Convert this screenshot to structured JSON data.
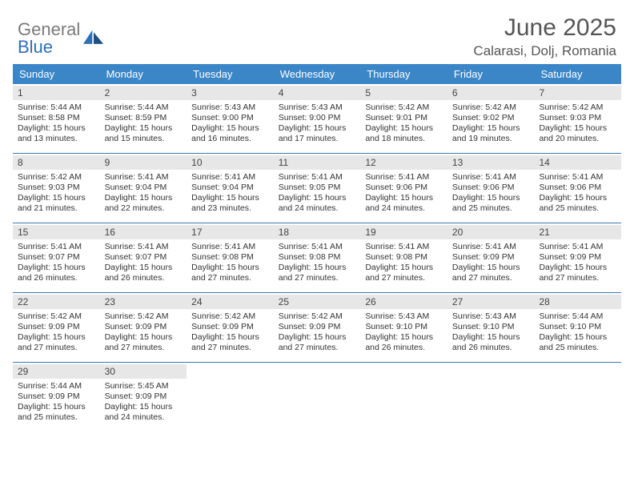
{
  "logo": {
    "general": "General",
    "blue": "Blue"
  },
  "header": {
    "month_title": "June 2025",
    "location": "Calarasi, Dolj, Romania"
  },
  "colors": {
    "header_bar": "#3b86c7",
    "row_divider": "#3b79b0",
    "day_head_bg": "#e7e7e7",
    "text": "#333333",
    "title_text": "#555555",
    "logo_grey": "#7a7a7a",
    "logo_blue": "#2f6fb3",
    "background": "#ffffff"
  },
  "weekdays": [
    "Sunday",
    "Monday",
    "Tuesday",
    "Wednesday",
    "Thursday",
    "Friday",
    "Saturday"
  ],
  "weeks": [
    [
      {
        "num": "1",
        "sunrise": "Sunrise: 5:44 AM",
        "sunset": "Sunset: 8:58 PM",
        "day1": "Daylight: 15 hours",
        "day2": "and 13 minutes."
      },
      {
        "num": "2",
        "sunrise": "Sunrise: 5:44 AM",
        "sunset": "Sunset: 8:59 PM",
        "day1": "Daylight: 15 hours",
        "day2": "and 15 minutes."
      },
      {
        "num": "3",
        "sunrise": "Sunrise: 5:43 AM",
        "sunset": "Sunset: 9:00 PM",
        "day1": "Daylight: 15 hours",
        "day2": "and 16 minutes."
      },
      {
        "num": "4",
        "sunrise": "Sunrise: 5:43 AM",
        "sunset": "Sunset: 9:00 PM",
        "day1": "Daylight: 15 hours",
        "day2": "and 17 minutes."
      },
      {
        "num": "5",
        "sunrise": "Sunrise: 5:42 AM",
        "sunset": "Sunset: 9:01 PM",
        "day1": "Daylight: 15 hours",
        "day2": "and 18 minutes."
      },
      {
        "num": "6",
        "sunrise": "Sunrise: 5:42 AM",
        "sunset": "Sunset: 9:02 PM",
        "day1": "Daylight: 15 hours",
        "day2": "and 19 minutes."
      },
      {
        "num": "7",
        "sunrise": "Sunrise: 5:42 AM",
        "sunset": "Sunset: 9:03 PM",
        "day1": "Daylight: 15 hours",
        "day2": "and 20 minutes."
      }
    ],
    [
      {
        "num": "8",
        "sunrise": "Sunrise: 5:42 AM",
        "sunset": "Sunset: 9:03 PM",
        "day1": "Daylight: 15 hours",
        "day2": "and 21 minutes."
      },
      {
        "num": "9",
        "sunrise": "Sunrise: 5:41 AM",
        "sunset": "Sunset: 9:04 PM",
        "day1": "Daylight: 15 hours",
        "day2": "and 22 minutes."
      },
      {
        "num": "10",
        "sunrise": "Sunrise: 5:41 AM",
        "sunset": "Sunset: 9:04 PM",
        "day1": "Daylight: 15 hours",
        "day2": "and 23 minutes."
      },
      {
        "num": "11",
        "sunrise": "Sunrise: 5:41 AM",
        "sunset": "Sunset: 9:05 PM",
        "day1": "Daylight: 15 hours",
        "day2": "and 24 minutes."
      },
      {
        "num": "12",
        "sunrise": "Sunrise: 5:41 AM",
        "sunset": "Sunset: 9:06 PM",
        "day1": "Daylight: 15 hours",
        "day2": "and 24 minutes."
      },
      {
        "num": "13",
        "sunrise": "Sunrise: 5:41 AM",
        "sunset": "Sunset: 9:06 PM",
        "day1": "Daylight: 15 hours",
        "day2": "and 25 minutes."
      },
      {
        "num": "14",
        "sunrise": "Sunrise: 5:41 AM",
        "sunset": "Sunset: 9:06 PM",
        "day1": "Daylight: 15 hours",
        "day2": "and 25 minutes."
      }
    ],
    [
      {
        "num": "15",
        "sunrise": "Sunrise: 5:41 AM",
        "sunset": "Sunset: 9:07 PM",
        "day1": "Daylight: 15 hours",
        "day2": "and 26 minutes."
      },
      {
        "num": "16",
        "sunrise": "Sunrise: 5:41 AM",
        "sunset": "Sunset: 9:07 PM",
        "day1": "Daylight: 15 hours",
        "day2": "and 26 minutes."
      },
      {
        "num": "17",
        "sunrise": "Sunrise: 5:41 AM",
        "sunset": "Sunset: 9:08 PM",
        "day1": "Daylight: 15 hours",
        "day2": "and 27 minutes."
      },
      {
        "num": "18",
        "sunrise": "Sunrise: 5:41 AM",
        "sunset": "Sunset: 9:08 PM",
        "day1": "Daylight: 15 hours",
        "day2": "and 27 minutes."
      },
      {
        "num": "19",
        "sunrise": "Sunrise: 5:41 AM",
        "sunset": "Sunset: 9:08 PM",
        "day1": "Daylight: 15 hours",
        "day2": "and 27 minutes."
      },
      {
        "num": "20",
        "sunrise": "Sunrise: 5:41 AM",
        "sunset": "Sunset: 9:09 PM",
        "day1": "Daylight: 15 hours",
        "day2": "and 27 minutes."
      },
      {
        "num": "21",
        "sunrise": "Sunrise: 5:41 AM",
        "sunset": "Sunset: 9:09 PM",
        "day1": "Daylight: 15 hours",
        "day2": "and 27 minutes."
      }
    ],
    [
      {
        "num": "22",
        "sunrise": "Sunrise: 5:42 AM",
        "sunset": "Sunset: 9:09 PM",
        "day1": "Daylight: 15 hours",
        "day2": "and 27 minutes."
      },
      {
        "num": "23",
        "sunrise": "Sunrise: 5:42 AM",
        "sunset": "Sunset: 9:09 PM",
        "day1": "Daylight: 15 hours",
        "day2": "and 27 minutes."
      },
      {
        "num": "24",
        "sunrise": "Sunrise: 5:42 AM",
        "sunset": "Sunset: 9:09 PM",
        "day1": "Daylight: 15 hours",
        "day2": "and 27 minutes."
      },
      {
        "num": "25",
        "sunrise": "Sunrise: 5:42 AM",
        "sunset": "Sunset: 9:09 PM",
        "day1": "Daylight: 15 hours",
        "day2": "and 27 minutes."
      },
      {
        "num": "26",
        "sunrise": "Sunrise: 5:43 AM",
        "sunset": "Sunset: 9:10 PM",
        "day1": "Daylight: 15 hours",
        "day2": "and 26 minutes."
      },
      {
        "num": "27",
        "sunrise": "Sunrise: 5:43 AM",
        "sunset": "Sunset: 9:10 PM",
        "day1": "Daylight: 15 hours",
        "day2": "and 26 minutes."
      },
      {
        "num": "28",
        "sunrise": "Sunrise: 5:44 AM",
        "sunset": "Sunset: 9:10 PM",
        "day1": "Daylight: 15 hours",
        "day2": "and 25 minutes."
      }
    ],
    [
      {
        "num": "29",
        "sunrise": "Sunrise: 5:44 AM",
        "sunset": "Sunset: 9:09 PM",
        "day1": "Daylight: 15 hours",
        "day2": "and 25 minutes."
      },
      {
        "num": "30",
        "sunrise": "Sunrise: 5:45 AM",
        "sunset": "Sunset: 9:09 PM",
        "day1": "Daylight: 15 hours",
        "day2": "and 24 minutes."
      },
      null,
      null,
      null,
      null,
      null
    ]
  ]
}
